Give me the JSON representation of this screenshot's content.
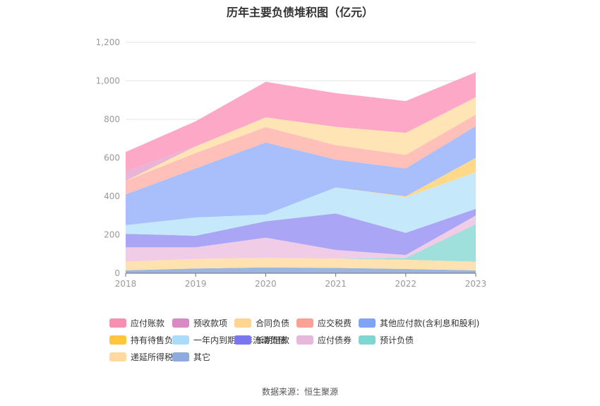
{
  "chart_data": {
    "type": "area",
    "stacked": true,
    "title": "历年主要负债堆积图（亿元）",
    "x": [
      "2018",
      "2019",
      "2020",
      "2021",
      "2022",
      "2023"
    ],
    "ylim": [
      0,
      1200
    ],
    "yticks": [
      0,
      200,
      400,
      600,
      800,
      1000,
      1200
    ],
    "ytick_labels": [
      "0",
      "200",
      "400",
      "600",
      "800",
      "1,000",
      "1,200"
    ],
    "grid": true,
    "legend_position": "bottom",
    "series": [
      {
        "name": "其它",
        "color": "#9bb5de",
        "values": [
          15,
          25,
          30,
          28,
          22,
          15
        ]
      },
      {
        "name": "递延所得税负债",
        "color": "#ffe2b0",
        "values": [
          45,
          50,
          50,
          48,
          48,
          45
        ]
      },
      {
        "name": "预计负债",
        "color": "#9fe0dd",
        "values": [
          0,
          0,
          0,
          0,
          10,
          195
        ]
      },
      {
        "name": "应付债券",
        "color": "#f0cce6",
        "values": [
          75,
          60,
          105,
          45,
          15,
          45
        ]
      },
      {
        "name": "长期借款",
        "color": "#aaa6f5",
        "values": [
          70,
          60,
          85,
          190,
          115,
          35
        ]
      },
      {
        "name": "一年内到期的非流动负债",
        "color": "#c5e8fb",
        "values": [
          45,
          95,
          35,
          135,
          185,
          190
        ]
      },
      {
        "name": "持有待售负债",
        "color": "#ffd98a",
        "values": [
          0,
          0,
          0,
          0,
          5,
          75
        ]
      },
      {
        "name": "其他应付款(含利息和股利)",
        "color": "#a9bffb",
        "values": [
          160,
          255,
          375,
          145,
          145,
          165
        ]
      },
      {
        "name": "应交税费",
        "color": "#fec0b8",
        "values": [
          70,
          80,
          80,
          75,
          70,
          60
        ]
      },
      {
        "name": "合同负债",
        "color": "#ffe4b5",
        "values": [
          0,
          35,
          50,
          95,
          115,
          90
        ]
      },
      {
        "name": "预收款项",
        "color": "#eab4d6",
        "values": [
          50,
          0,
          0,
          0,
          0,
          0
        ]
      },
      {
        "name": "应付账款",
        "color": "#fda8c6",
        "values": [
          100,
          130,
          185,
          175,
          165,
          130
        ]
      }
    ]
  },
  "legend": [
    {
      "name": "应付账款",
      "color": "#f78fb3"
    },
    {
      "name": "预收款项",
      "color": "#d98ac5"
    },
    {
      "name": "合同负债",
      "color": "#ffd591"
    },
    {
      "name": "应交税费",
      "color": "#fca195"
    },
    {
      "name": "其他应付款(含利息和股利)",
      "color": "#7fa3f5"
    },
    {
      "name": "持有待售负债",
      "color": "#ffc53d"
    },
    {
      "name": "一年内到期的非流动负债",
      "color": "#aadcf9"
    },
    {
      "name": "长期借款",
      "color": "#7b78ef"
    },
    {
      "name": "应付债券",
      "color": "#e6b8dc"
    },
    {
      "name": "预计负债",
      "color": "#7fd6d3"
    },
    {
      "name": "递延所得税负债",
      "color": "#ffd9a0"
    },
    {
      "name": "其它",
      "color": "#8fabde"
    }
  ],
  "source": "数据来源：恒生聚源"
}
